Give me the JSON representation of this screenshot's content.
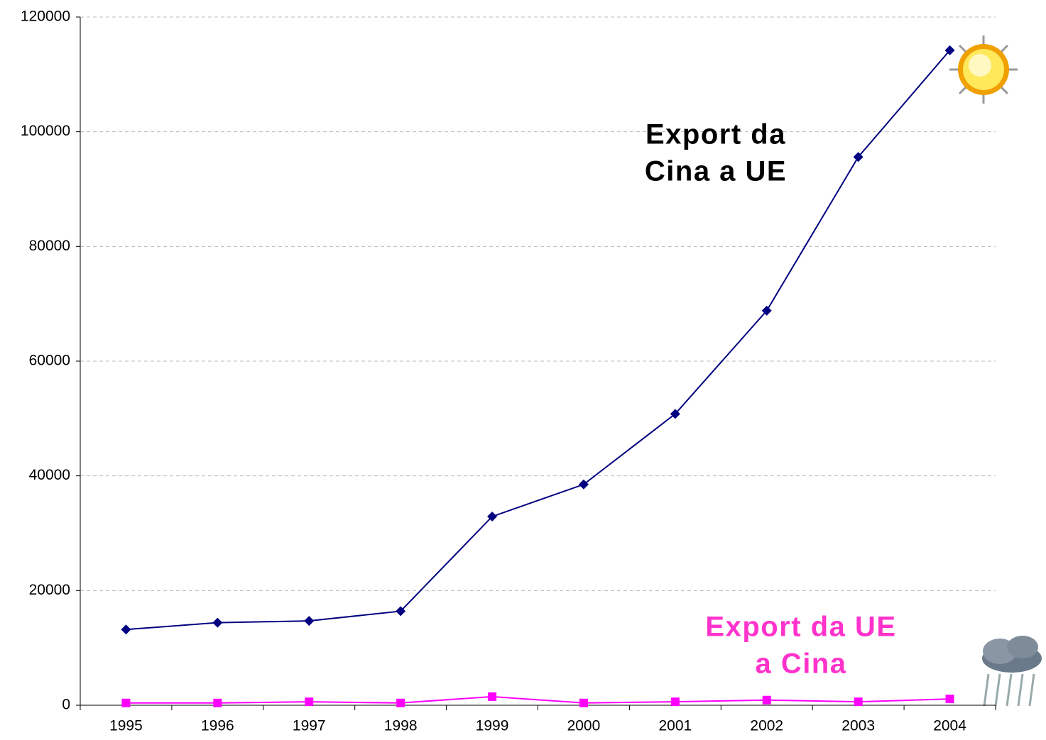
{
  "chart_data": {
    "type": "line",
    "categories": [
      "1995",
      "1996",
      "1997",
      "1998",
      "1999",
      "2000",
      "2001",
      "2002",
      "2003",
      "2004"
    ],
    "series": [
      {
        "color": "#000080",
        "marker": "diamond",
        "values": [
          13200,
          14400,
          14700,
          16400,
          32900,
          38500,
          50800,
          68800,
          95600,
          114200
        ]
      },
      {
        "color": "#ff00ff",
        "marker": "square",
        "values": [
          400,
          400,
          600,
          400,
          1500,
          400,
          600,
          900,
          600,
          1100
        ]
      }
    ],
    "ylim": [
      0,
      120000
    ],
    "yticks": [
      0,
      20000,
      40000,
      60000,
      80000,
      100000,
      120000
    ],
    "grid": true,
    "annotations": [
      {
        "lines": [
          "Export da",
          "Cina a UE"
        ],
        "color": "#000000"
      },
      {
        "lines": [
          "Export da UE",
          "a Cina"
        ],
        "color": "#ff33cc"
      }
    ]
  }
}
